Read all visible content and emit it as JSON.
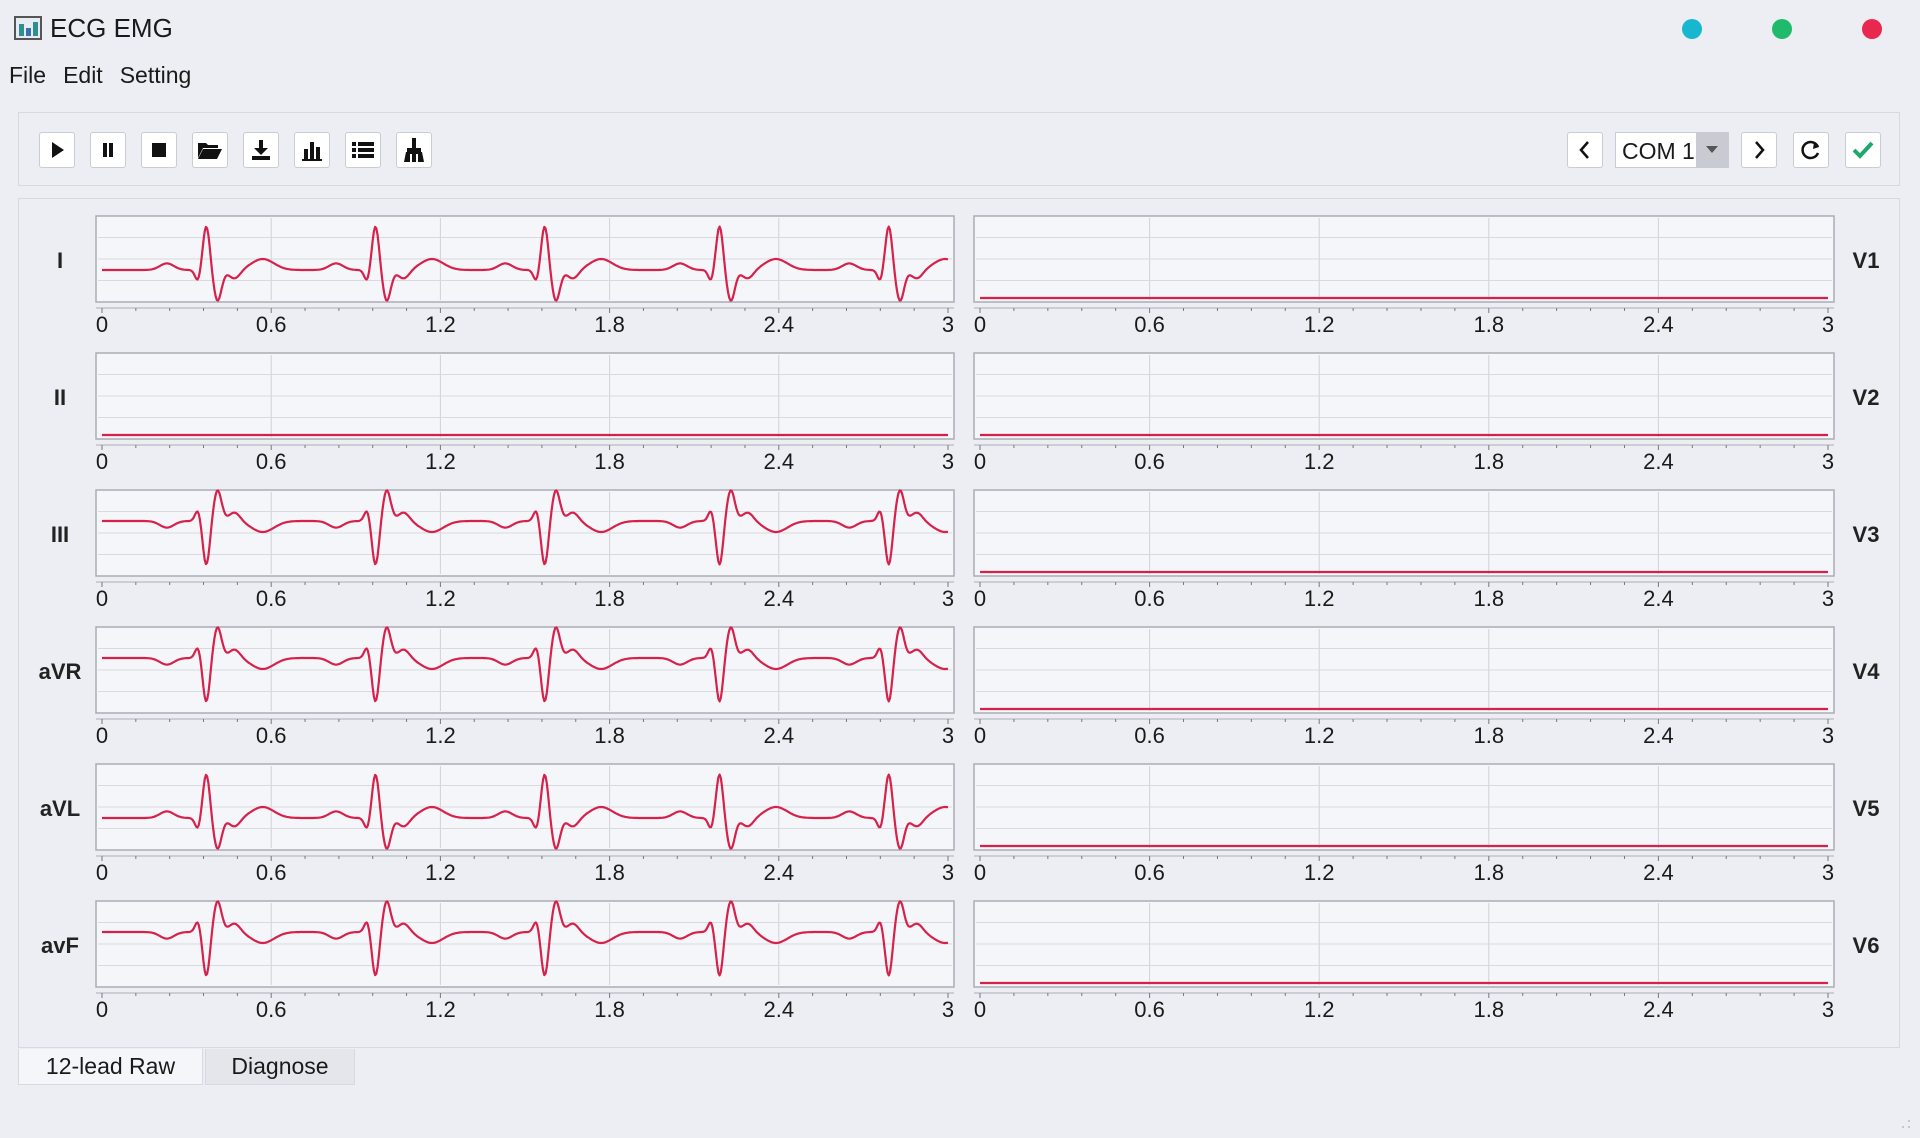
{
  "window": {
    "title": "ECG EMG",
    "controls": [
      {
        "name": "minimize",
        "color": "#18b7d0"
      },
      {
        "name": "maximize",
        "color": "#1fba6a"
      },
      {
        "name": "close",
        "color": "#e8284f"
      }
    ]
  },
  "menu": [
    "File",
    "Edit",
    "Setting"
  ],
  "toolbar": {
    "buttons": [
      "play-icon",
      "pause-icon",
      "stop-icon",
      "folder-open-icon",
      "download-icon",
      "bar-chart-icon",
      "list-icon",
      "broom-icon"
    ],
    "com_port": {
      "value": "COM 1"
    },
    "right_buttons": [
      "chevron-left-icon",
      "chevron-right-icon",
      "refresh-icon",
      "check-icon"
    ]
  },
  "tabs": [
    {
      "label": "12-lead Raw",
      "active": true
    },
    {
      "label": "Diagnose",
      "active": false
    }
  ],
  "colors": {
    "trace": "#d6214b",
    "accent_check": "#1fa86b"
  },
  "chart_data": {
    "type": "line",
    "x_ticks": [
      "0",
      "0.6",
      "1.2",
      "1.8",
      "2.4",
      "3"
    ],
    "xlim": [
      0,
      3
    ],
    "grid": true,
    "beat_times": [
      0.37,
      0.97,
      1.57,
      2.19,
      2.79
    ],
    "left_leads": [
      {
        "name": "I",
        "waveform": "upright"
      },
      {
        "name": "II",
        "waveform": "flat"
      },
      {
        "name": "III",
        "waveform": "inverted"
      },
      {
        "name": "aVR",
        "waveform": "inverted"
      },
      {
        "name": "aVL",
        "waveform": "upright"
      },
      {
        "name": "avF",
        "waveform": "inverted"
      }
    ],
    "right_leads": [
      {
        "name": "V1",
        "waveform": "flat"
      },
      {
        "name": "V2",
        "waveform": "flat"
      },
      {
        "name": "V3",
        "waveform": "flat"
      },
      {
        "name": "V4",
        "waveform": "flat"
      },
      {
        "name": "V5",
        "waveform": "flat"
      },
      {
        "name": "V6",
        "waveform": "flat"
      }
    ]
  }
}
